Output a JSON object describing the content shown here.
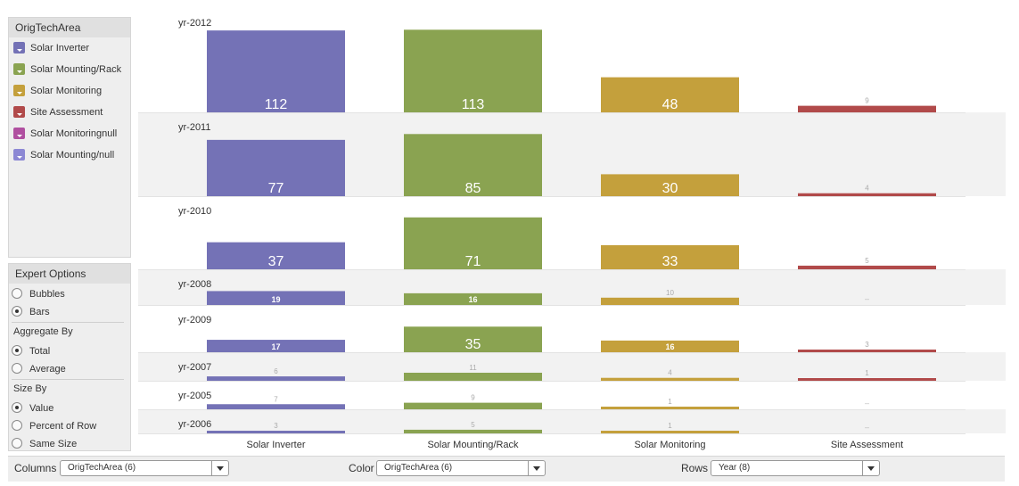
{
  "legend": {
    "title": "OrigTechArea",
    "items": [
      {
        "label": "Solar Inverter",
        "color": "#7472b6"
      },
      {
        "label": "Solar Mounting/Rack",
        "color": "#8aa351"
      },
      {
        "label": "Solar Monitoring",
        "color": "#c4a03c"
      },
      {
        "label": "Site Assessment",
        "color": "#b14a4a"
      },
      {
        "label": "Solar Monitoringnull",
        "color": "#b04fa0"
      },
      {
        "label": "Solar Mounting/null",
        "color": "#8c88d4"
      }
    ]
  },
  "options": {
    "title": "Expert Options",
    "bubbles": "Bubbles",
    "bars": "Bars",
    "aggregate_label": "Aggregate By",
    "total": "Total",
    "average": "Average",
    "size_label": "Size By",
    "value": "Value",
    "percent_of_row": "Percent of Row",
    "same_size": "Same Size",
    "selected": {
      "mode": "Bars",
      "aggregate": "Total",
      "size": "Value"
    }
  },
  "controls": {
    "columns_label": "Columns",
    "columns_value": "OrigTechArea (6)",
    "color_label": "Color",
    "color_value": "OrigTechArea (6)",
    "rows_label": "Rows",
    "rows_value": "Year (8)"
  },
  "chart_data": {
    "type": "bar",
    "categories": [
      "Solar Inverter",
      "Solar Mounting/Rack",
      "Solar Monitoring",
      "Site Assessment"
    ],
    "colors": [
      "#7472b6",
      "#8aa351",
      "#c4a03c",
      "#b14a4a"
    ],
    "rows": [
      {
        "label": "yr-2012",
        "values": [
          112,
          113,
          48,
          9
        ]
      },
      {
        "label": "yr-2011",
        "values": [
          77,
          85,
          30,
          4
        ]
      },
      {
        "label": "yr-2010",
        "values": [
          37,
          71,
          33,
          5
        ]
      },
      {
        "label": "yr-2008",
        "values": [
          19,
          16,
          10,
          null
        ]
      },
      {
        "label": "yr-2009",
        "values": [
          17,
          35,
          16,
          3
        ]
      },
      {
        "label": "yr-2007",
        "values": [
          6,
          11,
          4,
          1
        ]
      },
      {
        "label": "yr-2005",
        "values": [
          7,
          9,
          1,
          null
        ]
      },
      {
        "label": "yr-2006",
        "values": [
          3,
          5,
          1,
          null
        ]
      }
    ],
    "missing_label": "–"
  }
}
